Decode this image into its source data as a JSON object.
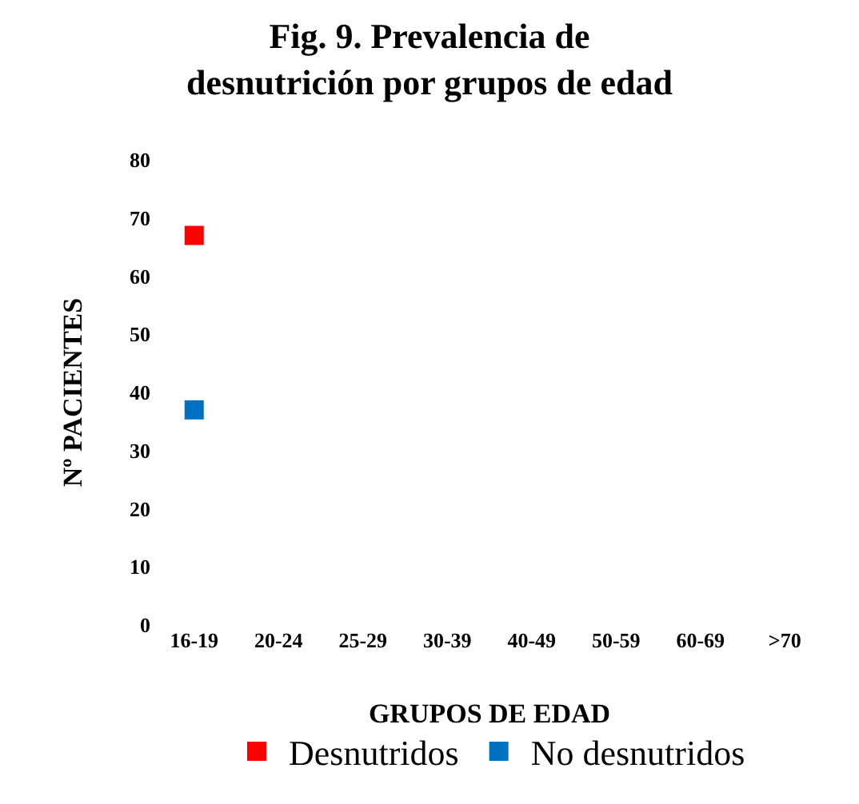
{
  "chart_data": {
    "type": "scatter",
    "title": "Fig. 9. Prevalencia de\ndesnutrición por grupos de edad",
    "xlabel": "GRUPOS DE EDAD",
    "ylabel": "Nº PACIENTES",
    "categories": [
      "16-19",
      "20-24",
      "25-29",
      "30-39",
      "40-49",
      "50-59",
      "60-69",
      ">70"
    ],
    "series": [
      {
        "name": "Desnutridos",
        "color": "#ff0000",
        "values": [
          67,
          null,
          null,
          null,
          null,
          null,
          null,
          null
        ]
      },
      {
        "name": "No desnutridos",
        "color": "#0070c0",
        "values": [
          37,
          null,
          null,
          null,
          null,
          null,
          null,
          null
        ]
      }
    ],
    "ylim": [
      0,
      80
    ],
    "yticks": [
      0,
      10,
      20,
      30,
      40,
      50,
      60,
      70,
      80
    ],
    "grid": false,
    "legend": "bottom",
    "marker": "square"
  }
}
